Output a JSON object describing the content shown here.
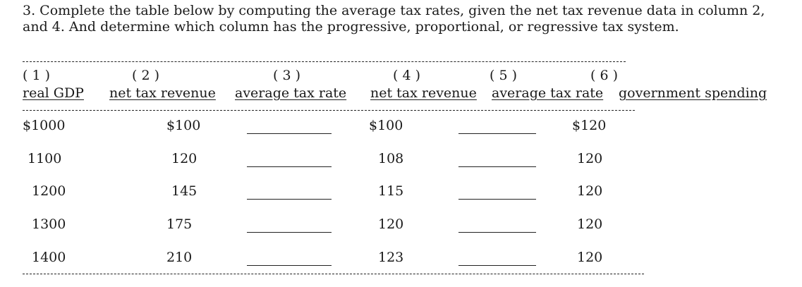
{
  "question": "3. Complete the table below by computing the average tax rates, given the net tax revenue data in column 2, and 4.  And determine which column has the progressive, proportional, or regressive tax system.",
  "columns": [
    {
      "number": "( 1 )",
      "header": "real GDP"
    },
    {
      "number": "( 2 )",
      "header": "net tax revenue"
    },
    {
      "number": "( 3 )",
      "header": "average tax rate"
    },
    {
      "number": "( 4 )",
      "header": "net tax revenue"
    },
    {
      "number": "( 5 )",
      "header": "average tax rate"
    },
    {
      "number": "( 6 )",
      "header": "government spending"
    }
  ],
  "rows": [
    {
      "gdp": "$1000",
      "tax_a": "$100",
      "rate_a": "",
      "tax_b": "$100",
      "rate_b": "",
      "spending": "$120"
    },
    {
      "gdp": "1100",
      "tax_a": "120",
      "rate_a": "",
      "tax_b": "108",
      "rate_b": "",
      "spending": "120"
    },
    {
      "gdp": "1200",
      "tax_a": "145",
      "rate_a": "",
      "tax_b": "115",
      "rate_b": "",
      "spending": "120"
    },
    {
      "gdp": "1300",
      "tax_a": "175",
      "rate_a": "",
      "tax_b": "120",
      "rate_b": "",
      "spending": "120"
    },
    {
      "gdp": "1400",
      "tax_a": "210",
      "rate_a": "",
      "tax_b": "123",
      "rate_b": "",
      "spending": "120"
    }
  ]
}
